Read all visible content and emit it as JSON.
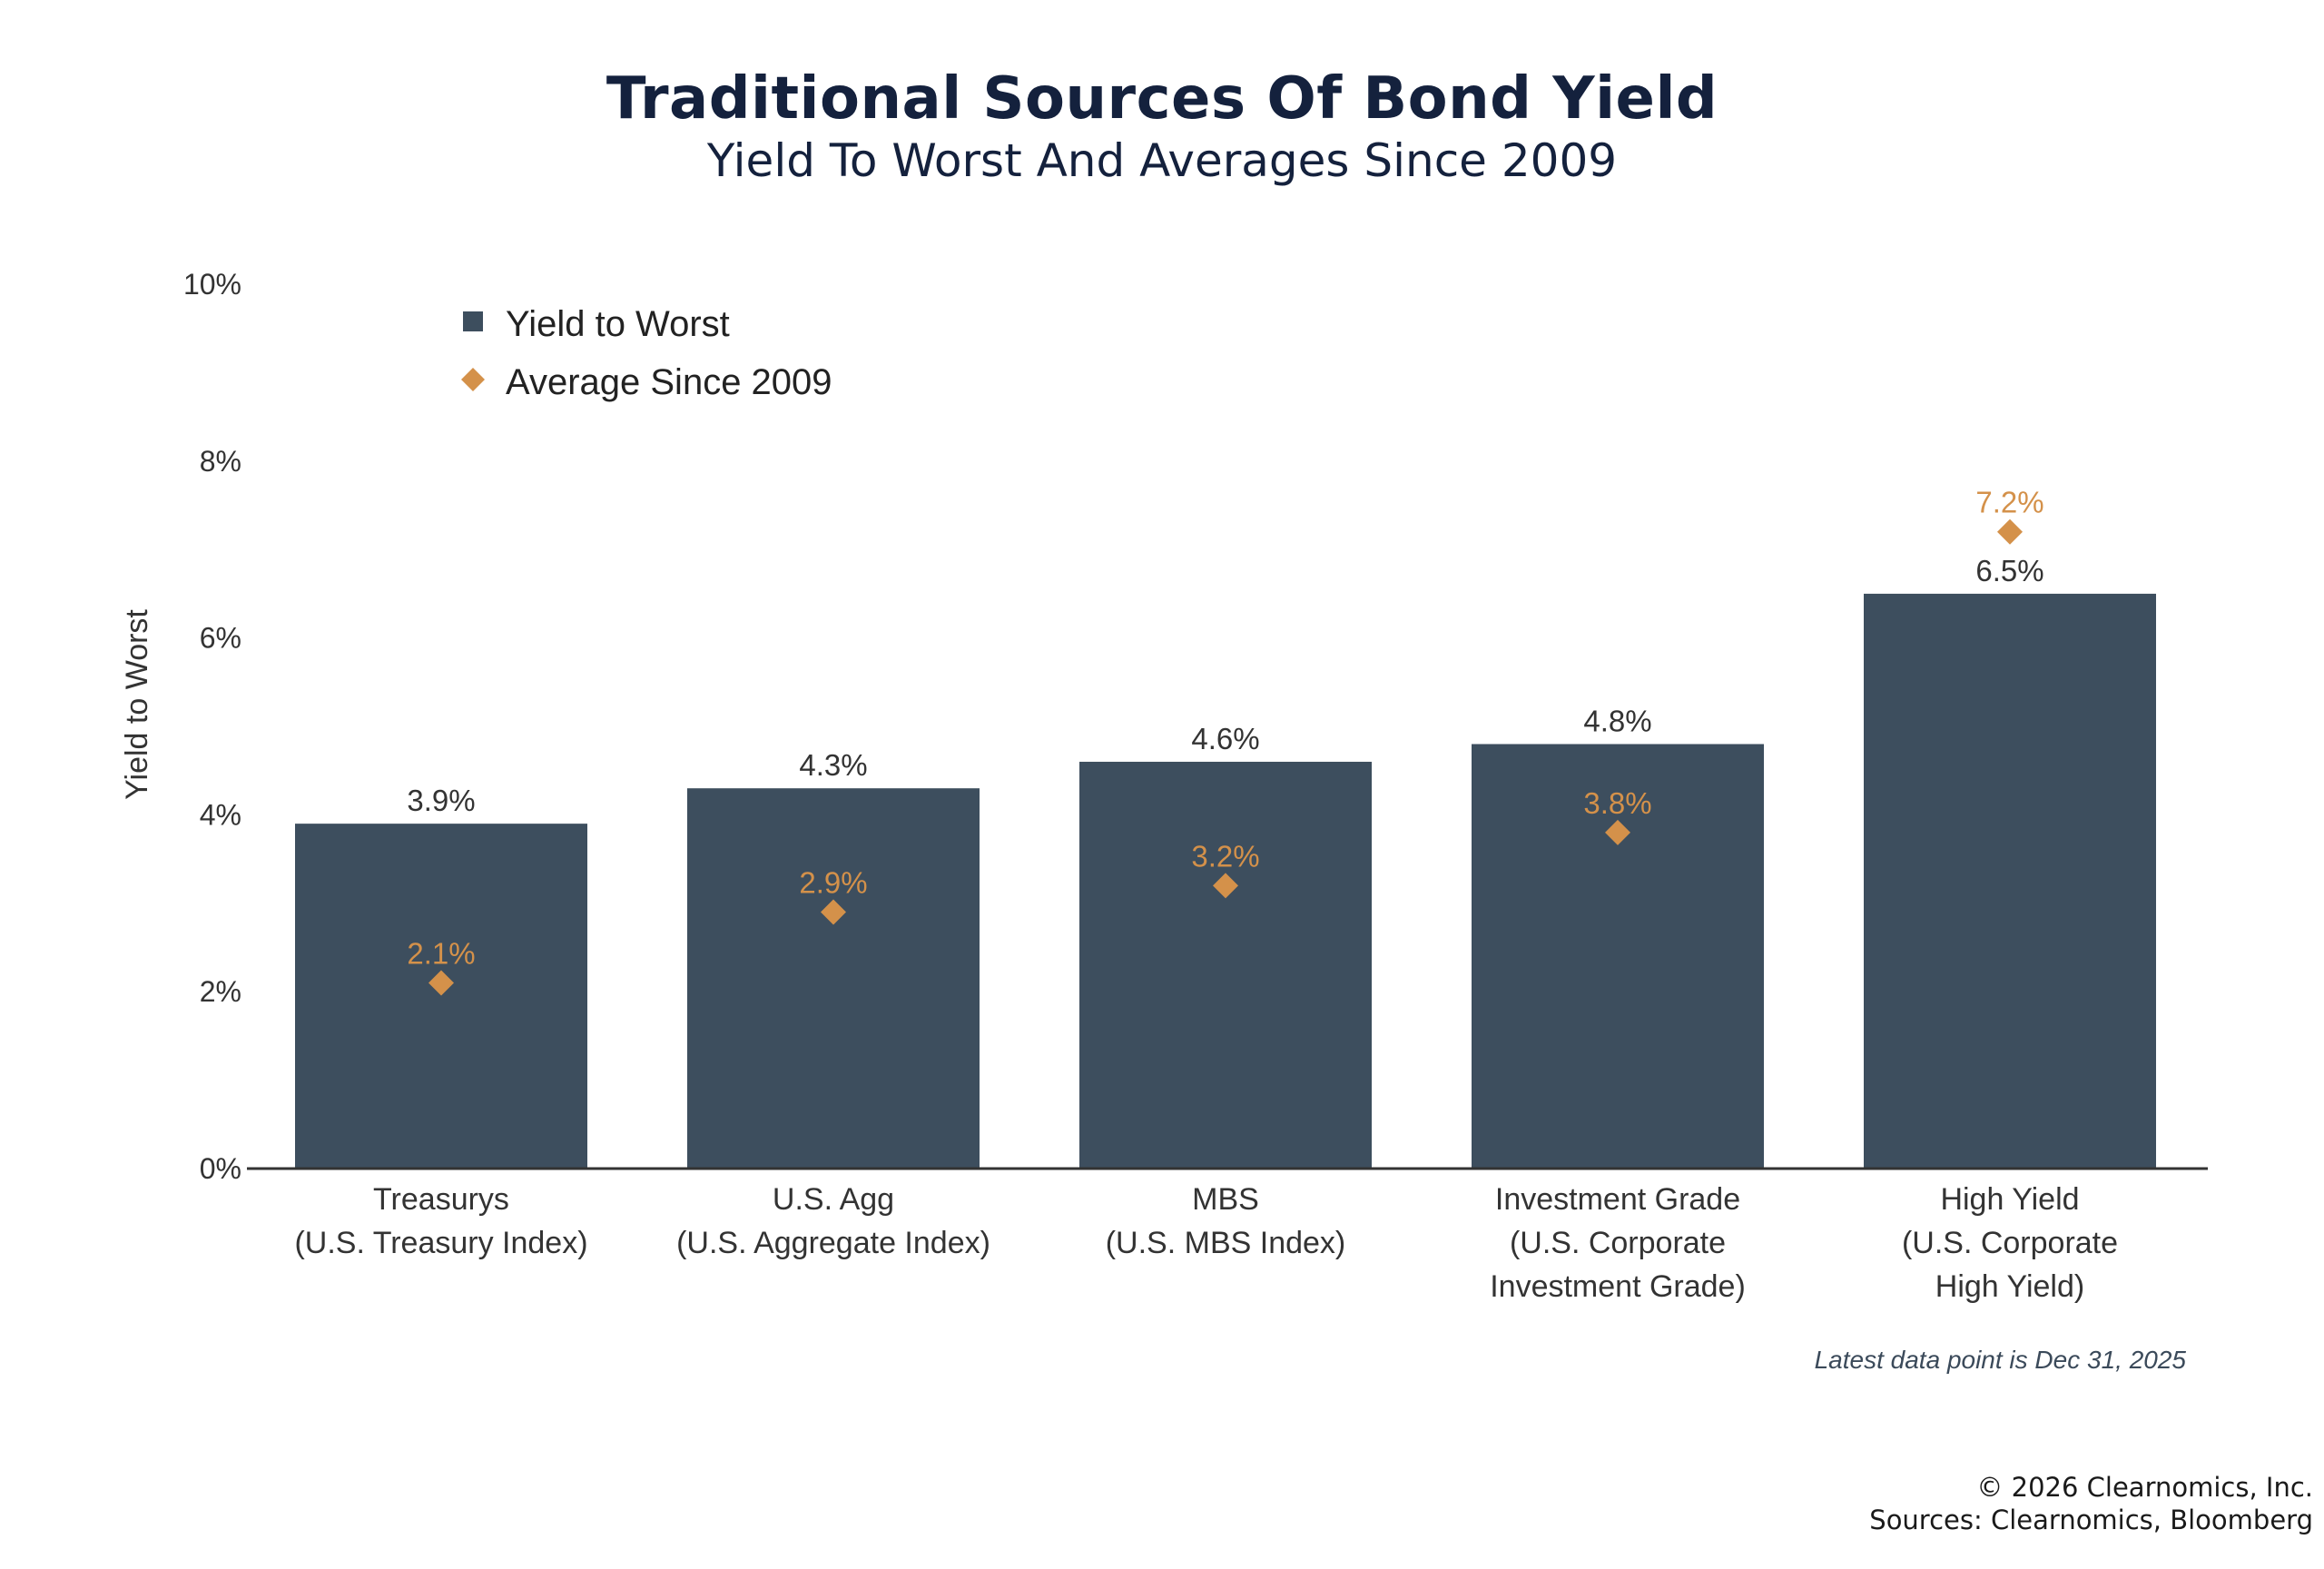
{
  "title": "Traditional Sources Of Bond Yield",
  "subtitle": "Yield To Worst And Averages Since 2009",
  "note": "Latest data point is Dec 31, 2025",
  "footer": {
    "copyright": "© 2026 Clearnomics, Inc.",
    "sources": "Sources: Clearnomics, Bloomberg"
  },
  "colors": {
    "bar": "#3d4e5e",
    "marker": "#d4914a",
    "axis": "#333333",
    "text": "#333333"
  },
  "chart_data": {
    "type": "bar",
    "ylabel": "Yield to Worst",
    "ylim": [
      0,
      10
    ],
    "yticks": [
      "0%",
      "2%",
      "4%",
      "6%",
      "8%",
      "10%"
    ],
    "grid": false,
    "legend_position": "top-left",
    "categories": [
      [
        "Treasurys",
        "(U.S. Treasury Index)"
      ],
      [
        "U.S. Agg",
        "(U.S. Aggregate Index)"
      ],
      [
        "MBS",
        "(U.S. MBS Index)"
      ],
      [
        "Investment Grade",
        "(U.S. Corporate",
        "Investment Grade)"
      ],
      [
        "High Yield",
        "(U.S. Corporate",
        "High Yield)"
      ]
    ],
    "series": [
      {
        "name": "Yield to Worst",
        "kind": "bar",
        "values": [
          3.9,
          4.3,
          4.6,
          4.8,
          6.5
        ],
        "labels": [
          "3.9%",
          "4.3%",
          "4.6%",
          "4.8%",
          "6.5%"
        ]
      },
      {
        "name": "Average Since 2009",
        "kind": "diamond",
        "values": [
          2.1,
          2.9,
          3.2,
          3.8,
          7.2
        ],
        "labels": [
          "2.1%",
          "2.9%",
          "3.2%",
          "3.8%",
          "7.2%"
        ]
      }
    ]
  }
}
